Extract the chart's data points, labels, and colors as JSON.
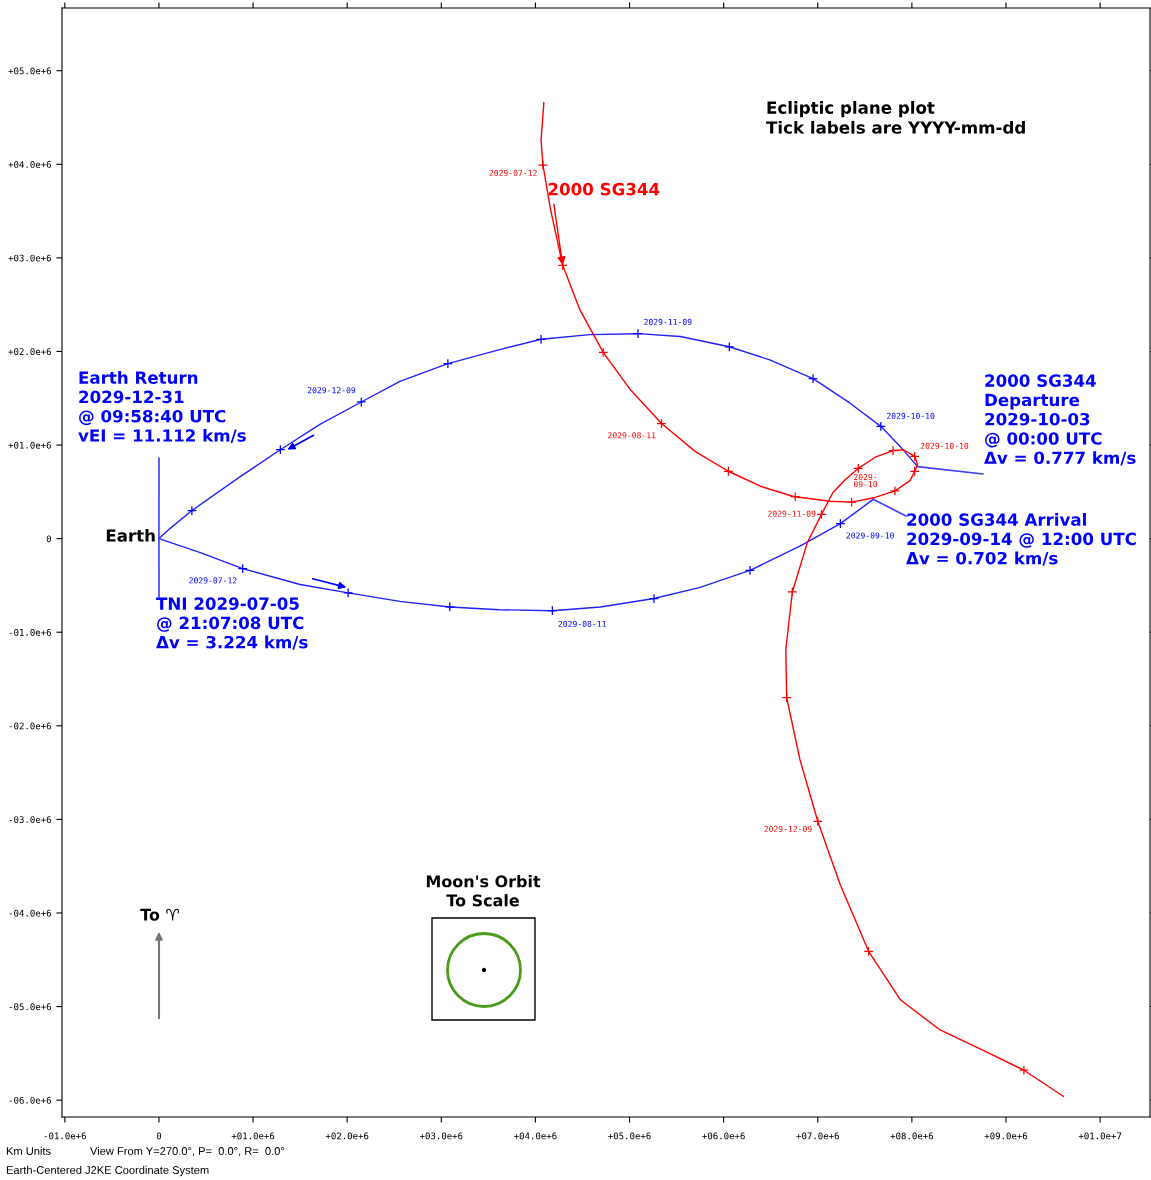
{
  "chart_data": {
    "type": "line",
    "xlim": [
      -1030000,
      10530000
    ],
    "ylim": [
      -6180000,
      5670000
    ],
    "xticks": [
      {
        "value": -1000000,
        "label": "-01.0e+6"
      },
      0,
      {
        "value": 1000000,
        "label": "+01.0e+6"
      },
      {
        "value": 2000000,
        "label": "+02.0e+6"
      },
      {
        "value": 3000000,
        "label": "+03.0e+6"
      },
      {
        "value": 4000000,
        "label": "+04.0e+6"
      },
      {
        "value": 5000000,
        "label": "+05.0e+6"
      },
      {
        "value": 6000000,
        "label": "+06.0e+6"
      },
      {
        "value": 7000000,
        "label": "+07.0e+6"
      },
      {
        "value": 8000000,
        "label": "+08.0e+6"
      },
      {
        "value": 9000000,
        "label": "+09.0e+6"
      },
      {
        "value": 10000000,
        "label": "+01.0e+7"
      }
    ],
    "yticks": [
      {
        "value": -6000000,
        "label": "-06.0e+6"
      },
      {
        "value": -5000000,
        "label": "-05.0e+6"
      },
      {
        "value": -4000000,
        "label": "-04.0e+6"
      },
      {
        "value": -3000000,
        "label": "-03.0e+6"
      },
      {
        "value": -2000000,
        "label": "-02.0e+6"
      },
      {
        "value": -1000000,
        "label": "-01.0e+6"
      },
      0,
      {
        "value": 1000000,
        "label": "+01.0e+6"
      },
      {
        "value": 2000000,
        "label": "+02.0e+6"
      },
      {
        "value": 3000000,
        "label": "+03.0e+6"
      },
      {
        "value": 4000000,
        "label": "+04.0e+6"
      },
      {
        "value": 5000000,
        "label": "+05.0e+6"
      }
    ],
    "grid": false,
    "legend": false,
    "series": [
      {
        "color": "#2222ff",
        "marker": "none",
        "x": [
          0,
          440000,
          890000,
          1500000,
          2010000,
          2560000,
          3090000,
          3620000,
          4180000,
          4690000,
          5260000,
          5750000,
          6280000,
          6810000,
          7240000,
          7590000
        ],
        "values": [
          0,
          -150000,
          -320000,
          -490000,
          -580000,
          -670000,
          -730000,
          -760000,
          -770000,
          -730000,
          -640000,
          -520000,
          -340000,
          -80000,
          160000,
          420000
        ]
      },
      {
        "color": "#2222ff",
        "marker": "none",
        "x": [
          8060000,
          7880000,
          7670000,
          7340000,
          6950000,
          6490000,
          6060000,
          5540000,
          5090000,
          4580000,
          4060000,
          3620000,
          3070000,
          2560000,
          2150000,
          1710000,
          1290000,
          860000,
          350000,
          120000,
          0
        ],
        "values": [
          770000,
          980000,
          1200000,
          1450000,
          1710000,
          1910000,
          2050000,
          2160000,
          2190000,
          2180000,
          2130000,
          2020000,
          1870000,
          1680000,
          1460000,
          1220000,
          950000,
          660000,
          300000,
          110000,
          0
        ]
      },
      {
        "name": "2000 SG344",
        "color": "#ff0000",
        "marker": "none",
        "x": [
          4090000,
          4060000,
          4080000,
          4160000,
          4290000,
          4470000,
          4720000,
          5010000,
          5340000,
          5700000,
          6050000,
          6390000,
          6740000,
          7130000,
          7360000,
          7610000,
          7820000,
          7980000,
          8030000,
          8060000,
          8030000,
          7910000,
          7800000,
          7610000,
          7430000,
          7290000,
          7160000,
          7040000,
          6890000,
          6730000,
          6660000,
          6670000,
          6810000,
          7000000,
          7240000,
          7540000,
          7880000,
          8300000,
          8780000,
          9190000,
          9610000
        ],
        "values": [
          4660000,
          4260000,
          3990000,
          3520000,
          2920000,
          2450000,
          1990000,
          1590000,
          1230000,
          930000,
          720000,
          560000,
          450000,
          400000,
          390000,
          440000,
          510000,
          620000,
          720000,
          790000,
          880000,
          950000,
          940000,
          870000,
          750000,
          630000,
          490000,
          260000,
          -40000,
          -570000,
          -1190000,
          -1700000,
          -2360000,
          -3020000,
          -3700000,
          -4410000,
          -4930000,
          -5250000,
          -5480000,
          -5680000,
          -5960000
        ]
      },
      {
        "type": "scatter",
        "color": "#0000ff",
        "marker": "cross",
        "x": [
          890000,
          2010000,
          3090000,
          4180000,
          5260000,
          6280000,
          7240000,
          7670000,
          6950000,
          6060000,
          5090000,
          4060000,
          3070000,
          2150000,
          1290000,
          350000
        ],
        "values": [
          -320000,
          -580000,
          -730000,
          -770000,
          -640000,
          -340000,
          160000,
          1200000,
          1710000,
          2050000,
          2190000,
          2130000,
          1870000,
          1460000,
          950000,
          300000
        ],
        "value_labels": [
          "2029-07-12",
          null,
          null,
          "2029-08-11",
          null,
          null,
          "2029-09-10",
          "2029-10-10",
          null,
          null,
          "2029-11-09",
          null,
          null,
          "2029-12-09",
          null,
          null
        ]
      },
      {
        "type": "scatter",
        "color": "#ff0000",
        "marker": "cross",
        "x": [
          4080000,
          4290000,
          4720000,
          5340000,
          6050000,
          6760000,
          7360000,
          7820000,
          8030000,
          8030000,
          7800000,
          7430000,
          7040000,
          6730000,
          6670000,
          7000000,
          7540000,
          9190000
        ],
        "values": [
          3990000,
          2920000,
          1990000,
          1230000,
          720000,
          450000,
          390000,
          510000,
          720000,
          880000,
          940000,
          750000,
          260000,
          -570000,
          -1700000,
          -3020000,
          -4410000,
          -5680000
        ],
        "value_labels": [
          "2029-07-12",
          null,
          null,
          "2029-08-11",
          null,
          null,
          "2029-\n09-10",
          null,
          null,
          "2029-10-10",
          null,
          null,
          "2029-11-09",
          null,
          null,
          "2029-12-09",
          null,
          null
        ]
      }
    ],
    "annotations": [
      {
        "text": "Earth",
        "x": 0,
        "y": 0
      },
      {
        "text": "TNI 2029-07-05\n@ 21:07:08 UTC\nΔv = 3.224 km/s",
        "x": 0,
        "y": 0
      },
      {
        "text": "Earth Return\n2029-12-31\n@ 09:58:40 UTC\nvEI = 11.112 km/s",
        "x": 0,
        "y": 0
      },
      {
        "text": "2000 SG344 Arrival\n2029-09-14 @ 12:00 UTC\nΔv = 0.702 km/s",
        "x": 7590000,
        "y": 420000
      },
      {
        "text": "2000 SG344\nDeparture\n2029-10-03\n@ 00:00 UTC\nΔv = 0.777 km/s",
        "x": 8060000,
        "y": 770000
      },
      "Ecliptic plane plot\nTick labels are YYYY-mm-dd",
      "Moon's Orbit\nTo Scale",
      "To ♈",
      "Km Units",
      "View From Y=270.0°, P=  0.0°, R=  0.0°",
      "Earth-Centered J2KE Coordinate System"
    ]
  }
}
